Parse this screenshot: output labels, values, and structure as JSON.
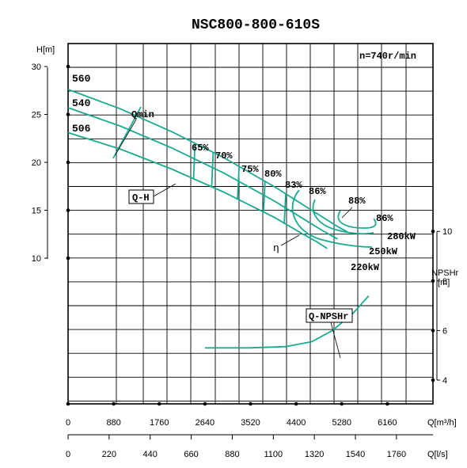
{
  "chart_data": {
    "type": "line",
    "title": "NSC800-800-610S",
    "speed_label": "n=740r/min",
    "x_unit_primary": "Q[m³/h]",
    "x_unit_secondary": "Q[l/s]",
    "y_left_label": "H[m]",
    "y_right_label_line1": "NPSHr",
    "y_right_label_line2": "[m]",
    "x_ticks_primary": [
      "0",
      "880",
      "1760",
      "2640",
      "3520",
      "4400",
      "5280",
      "6160"
    ],
    "x_ticks_secondary": [
      "0",
      "220",
      "440",
      "660",
      "880",
      "1100",
      "1320",
      "1540",
      "1760"
    ],
    "y_ticks_head": [
      "30",
      "25",
      "20",
      "15",
      "10"
    ],
    "y_ticks_npsh": [
      "10",
      "8",
      "6",
      "4"
    ],
    "xlim": [
      0,
      7040
    ],
    "head_ylim": [
      0,
      30
    ],
    "npsh_ylim": [
      3,
      10
    ],
    "grid": true,
    "head_series": [
      {
        "name": "560",
        "x": [
          0,
          1000,
          2000,
          3000,
          4000,
          4700,
          5200,
          5400
        ],
        "y": [
          27.6,
          25.6,
          23.2,
          20.5,
          17.4,
          15.0,
          13.3,
          12.7
        ]
      },
      {
        "name": "540",
        "x": [
          0,
          1000,
          2000,
          3000,
          4000,
          4600,
          4900,
          5200
        ],
        "y": [
          25.7,
          23.8,
          21.5,
          18.9,
          15.9,
          13.9,
          12.9,
          12.0
        ]
      },
      {
        "name": "506",
        "x": [
          0,
          1000,
          2000,
          3000,
          4000,
          4500,
          4800,
          5000
        ],
        "y": [
          23.1,
          21.4,
          19.3,
          16.9,
          14.2,
          12.6,
          11.7,
          11.0
        ]
      }
    ],
    "curve_labels": {
      "qmin": "Qmin",
      "qh": "Q-H",
      "eta": "η",
      "npsh": "Q-NPSHr"
    },
    "efficiency_labels": [
      "65%",
      "70%",
      "75%",
      "80%",
      "83%",
      "86%",
      "88%",
      "86%"
    ],
    "power_labels": [
      "280kW",
      "250kW",
      "220kW"
    ],
    "npsh_series": {
      "name": "Q-NPSHr",
      "x": [
        2640,
        3500,
        4200,
        4700,
        5100,
        5500,
        5800
      ],
      "y": [
        5.3,
        5.3,
        5.35,
        5.55,
        6.0,
        6.7,
        7.4
      ]
    }
  }
}
